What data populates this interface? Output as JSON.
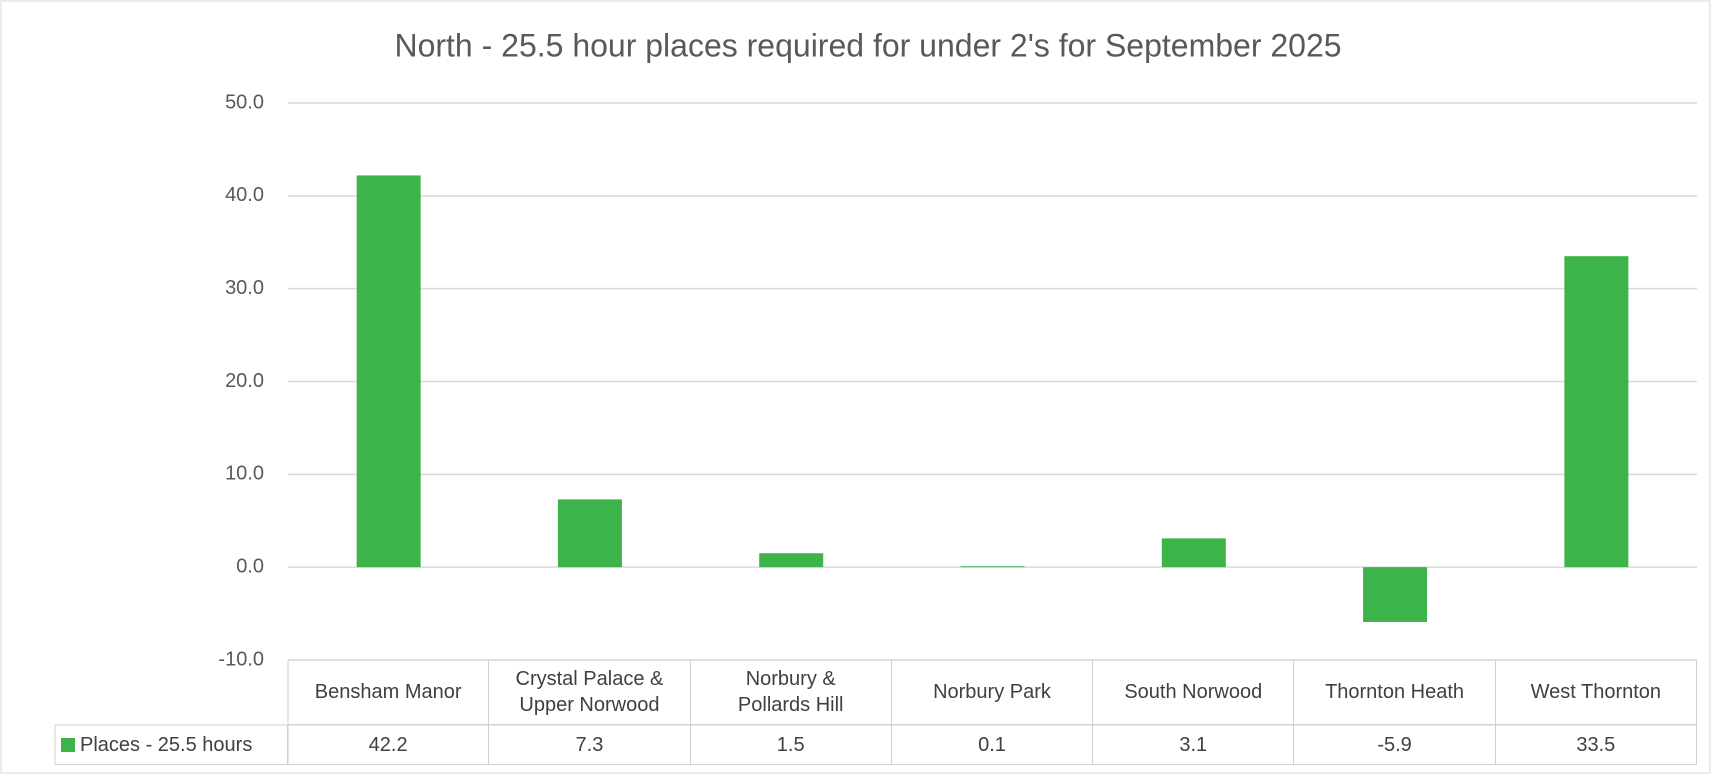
{
  "chart_data": {
    "type": "bar",
    "title": "North - 25.5 hour places required for under 2's for September 2025",
    "categories": [
      "Bensham Manor",
      "Crystal Palace & Upper Norwood",
      "Norbury & Pollards Hill",
      "Norbury Park",
      "South Norwood",
      "Thornton Heath",
      "West Thornton"
    ],
    "series": [
      {
        "name": "Places - 25.5 hours",
        "color": "#3cb44a",
        "values": [
          42.2,
          7.3,
          1.5,
          0.1,
          3.1,
          -5.9,
          33.5
        ]
      }
    ],
    "ylim": [
      -10,
      50
    ],
    "yticks": [
      {
        "value": -10,
        "label": "-10.0"
      },
      {
        "value": 0,
        "label": "0.0"
      },
      {
        "value": 10,
        "label": "10.0"
      },
      {
        "value": 20,
        "label": "20.0"
      },
      {
        "value": 30,
        "label": "30.0"
      },
      {
        "value": 40,
        "label": "40.0"
      },
      {
        "value": 50,
        "label": "50.0"
      }
    ],
    "grid": true
  }
}
